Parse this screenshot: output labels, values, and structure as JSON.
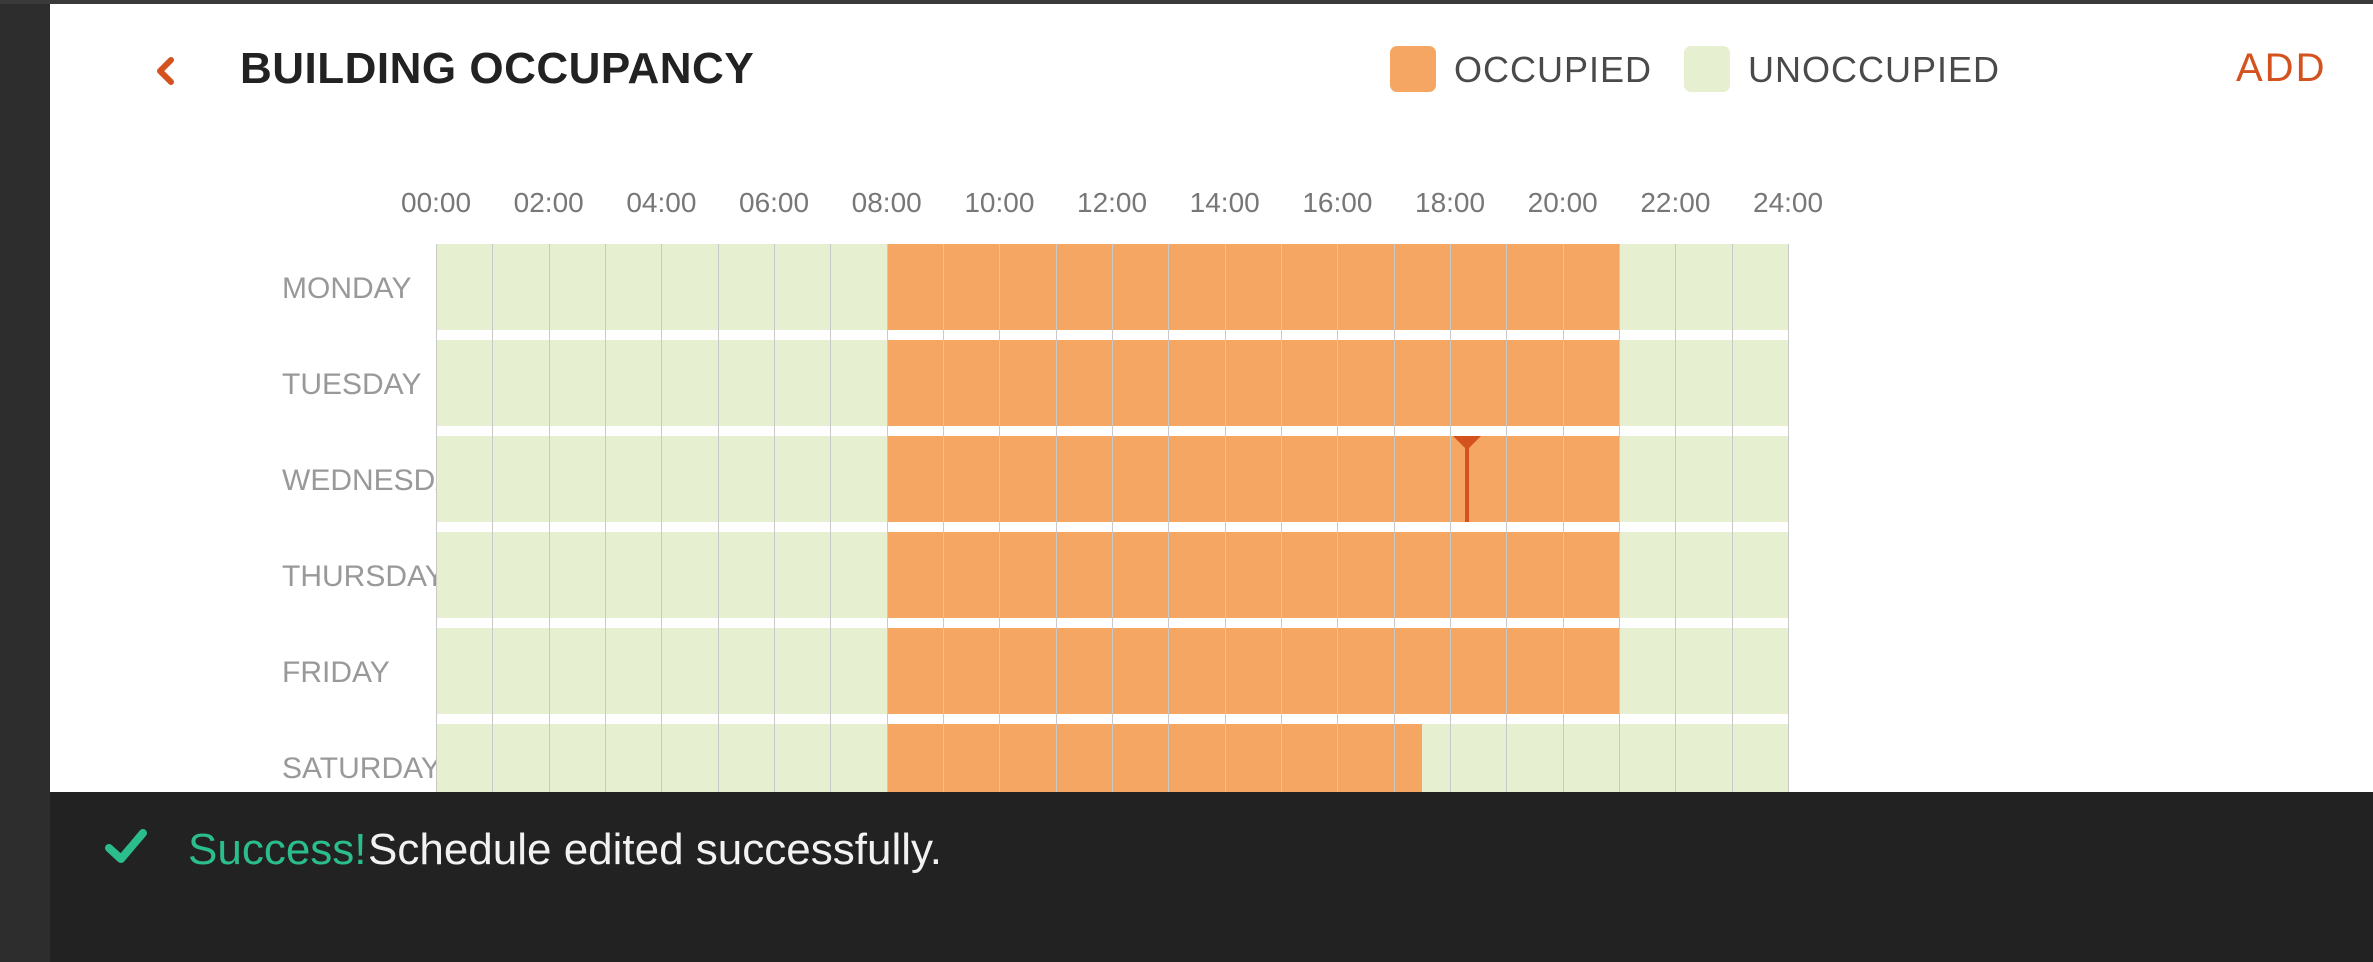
{
  "header": {
    "title": "BUILDING OCCUPANCY",
    "back_icon": "chevron-left-icon",
    "add_label": "ADD"
  },
  "legend": [
    {
      "label": "OCCUPIED",
      "color": "#f4a662"
    },
    {
      "label": "UNOCCUPIED",
      "color": "#e7efd1"
    }
  ],
  "colors": {
    "accent": "#d4521e",
    "occupied": "#f4a662",
    "unoccupied": "#e7efd1",
    "success": "#2bbd8c",
    "marker": "#d4521e"
  },
  "schedule": {
    "time_ticks": [
      "00:00",
      "02:00",
      "04:00",
      "06:00",
      "08:00",
      "10:00",
      "12:00",
      "14:00",
      "16:00",
      "18:00",
      "20:00",
      "22:00",
      "24:00"
    ],
    "days": [
      {
        "label": "MONDAY",
        "occupied": [
          8,
          21
        ]
      },
      {
        "label": "TUESDAY",
        "occupied": [
          8,
          21
        ]
      },
      {
        "label": "WEDNESDAY",
        "occupied": [
          8,
          21
        ]
      },
      {
        "label": "THURSDAY",
        "occupied": [
          8,
          21
        ]
      },
      {
        "label": "FRIDAY",
        "occupied": [
          8,
          21
        ]
      },
      {
        "label": "SATURDAY",
        "occupied": [
          8,
          17.5
        ]
      }
    ],
    "current_time_marker": {
      "day": "WEDNESDAY",
      "hour": 18.3
    }
  },
  "toast": {
    "icon": "checkmark-icon",
    "success_label": "Success!",
    "message": "Schedule edited successfully."
  }
}
